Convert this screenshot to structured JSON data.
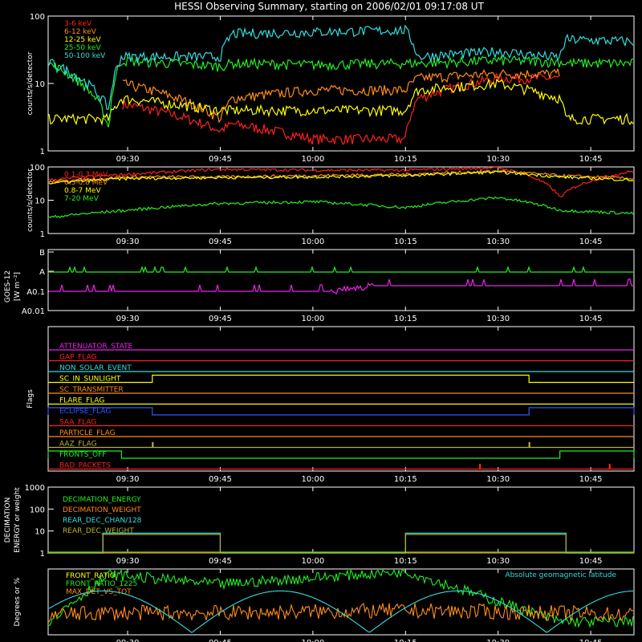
{
  "title": "HESSI Observing Summary, starting on 2006/02/01 09:17:08 UT",
  "time_ticks": [
    "09:30",
    "09:45",
    "10:00",
    "10:15",
    "10:30",
    "10:45"
  ],
  "colors": {
    "red": "#ff2020",
    "orange": "#ff8c1a",
    "yellow": "#ffff00",
    "green": "#22ee22",
    "cyan": "#33dddd",
    "magenta": "#ee22ee",
    "blue": "#3355ff",
    "olive": "#b8b030",
    "axis": "#ffffff"
  },
  "chart_data": [
    {
      "type": "line",
      "id": "panel-counts-low",
      "ylabel": "counts/s/detector",
      "y_scale": "log",
      "ylim": [
        1,
        100
      ],
      "ytick_labels": [
        "1",
        "10",
        "100"
      ],
      "legend_placement": "top-left",
      "x": [
        "09:17",
        "09:27",
        "09:29",
        "09:45",
        "09:47",
        "10:00",
        "10:15",
        "10:17",
        "10:30",
        "10:40",
        "10:41",
        "10:52"
      ],
      "series": [
        {
          "name": "3-6 keV",
          "color_key": "red",
          "values": [
            null,
            null,
            5,
            2,
            2.5,
            1.5,
            1.5,
            6,
            12,
            null,
            null,
            null
          ]
        },
        {
          "name": "6-12 keV",
          "color_key": "orange",
          "values": [
            null,
            null,
            10,
            3,
            6,
            8,
            8,
            12,
            14,
            null,
            null,
            null
          ]
        },
        {
          "name": "12-25 keV",
          "color_key": "yellow",
          "values": [
            3,
            3,
            6,
            4,
            4,
            4,
            4,
            8,
            10,
            6,
            3,
            3
          ]
        },
        {
          "name": "25-50 keV",
          "color_key": "green",
          "values": [
            20,
            2,
            22,
            18,
            20,
            19,
            20,
            20,
            22,
            21,
            20,
            20
          ]
        },
        {
          "name": "50-100 keV",
          "color_key": "cyan",
          "values": [
            21,
            4,
            25,
            25,
            55,
            58,
            62,
            25,
            30,
            24,
            45,
            42
          ]
        }
      ]
    },
    {
      "type": "line",
      "id": "panel-counts-high",
      "ylabel": "counts/s/detector",
      "y_scale": "log",
      "ylim": [
        1,
        100
      ],
      "ytick_labels": [
        "1",
        "10",
        "100"
      ],
      "legend_placement": "top-left",
      "x": [
        "09:17",
        "09:30",
        "09:45",
        "10:00",
        "10:15",
        "10:30",
        "10:40",
        "10:52"
      ],
      "series": [
        {
          "name": "0.1-0.3 MeV",
          "color_key": "red",
          "values": [
            40,
            60,
            85,
            80,
            80,
            95,
            12,
            75
          ]
        },
        {
          "name": "0.3-0.8 MeV",
          "color_key": "orange",
          "values": [
            35,
            50,
            50,
            55,
            60,
            75,
            55,
            45
          ]
        },
        {
          "name": "0.8-7 MeV",
          "color_key": "yellow",
          "values": [
            32,
            45,
            48,
            50,
            55,
            70,
            50,
            40
          ]
        },
        {
          "name": "7-20 MeV",
          "color_key": "green",
          "values": [
            3,
            5,
            8,
            9,
            6,
            12,
            5,
            4
          ]
        }
      ]
    },
    {
      "type": "line",
      "id": "panel-goes",
      "ylabel": "GOES-12",
      "ylabel_unit": "[W m⁻²]",
      "y_scale": "log",
      "ytick_labels": [
        "B",
        "A",
        "A0.1",
        "A0.01"
      ],
      "x": [
        "09:17",
        "10:00",
        "10:10",
        "10:52"
      ],
      "series": [
        {
          "name": "",
          "color_key": "green",
          "values": [
            "A",
            "A",
            "A",
            "A"
          ]
        },
        {
          "name": "",
          "color_key": "magenta",
          "values": [
            "A0.1",
            "A0.1",
            "above A0.1",
            "above A0.1"
          ]
        }
      ]
    },
    {
      "type": "line",
      "id": "panel-flags",
      "ylabel": "Flags",
      "flags": [
        {
          "name": "ATTENUATOR_STATE",
          "color_key": "magenta",
          "changes": []
        },
        {
          "name": "GAP_FLAG",
          "color_key": "red",
          "changes": []
        },
        {
          "name": "NON_SOLAR_EVENT",
          "color_key": "cyan",
          "changes": []
        },
        {
          "name": "SC_IN_SUNLIGHT",
          "color_key": "yellow",
          "high_intervals": [
            [
              "09:34",
              "10:35"
            ]
          ]
        },
        {
          "name": "SC_TRANSMITTER",
          "color_key": "orange",
          "changes": []
        },
        {
          "name": "FLARE_FLAG",
          "color_key": "yellow",
          "changes": []
        },
        {
          "name": "ECLIPSE_FLAG",
          "color_key": "blue",
          "high_intervals": [
            [
              "09:17",
              "09:34"
            ],
            [
              "10:35",
              "10:52"
            ]
          ]
        },
        {
          "name": "SAA_FLAG",
          "color_key": "red",
          "changes": []
        },
        {
          "name": "PARTICLE_FLAG",
          "color_key": "orange",
          "changes": []
        },
        {
          "name": "AAZ_FLAG",
          "color_key": "olive",
          "spikes": [
            "09:34",
            "10:35"
          ]
        },
        {
          "name": "FRONTS_OFF",
          "color_key": "green",
          "high_intervals": [
            [
              "09:17",
              "09:29"
            ],
            [
              "10:40",
              "10:52"
            ]
          ]
        },
        {
          "name": "BAD_PACKETS",
          "color_key": "red",
          "spikes": [
            "10:27",
            "10:48"
          ]
        }
      ]
    },
    {
      "type": "line",
      "id": "panel-decimation",
      "ylabel": "DECIMATION ENERGY or weight",
      "y_scale": "log",
      "ylim": [
        1,
        1000
      ],
      "ytick_labels": [
        "1",
        "10",
        "100",
        "1000"
      ],
      "legend_placement": "top-left",
      "x": [
        "09:17",
        "09:26",
        "09:45",
        "10:15",
        "10:41",
        "10:52"
      ],
      "series": [
        {
          "name": "DECIMATION_ENERGY",
          "color_key": "green",
          "values": [
            1,
            1,
            1,
            1,
            1,
            1
          ]
        },
        {
          "name": "DECIMATION_WEIGHT",
          "color_key": "orange",
          "values": [
            1,
            1,
            1,
            1,
            1,
            1
          ]
        },
        {
          "name": "REAR_DEC_CHAN/128",
          "color_key": "cyan",
          "values": [
            1,
            8,
            1,
            8,
            1,
            1
          ]
        },
        {
          "name": "REAR_DEC_WEIGHT",
          "color_key": "olive",
          "values": [
            1,
            7,
            1,
            7,
            1,
            1
          ]
        }
      ]
    },
    {
      "type": "line",
      "id": "panel-ratio",
      "ylabel": "Degrees or %",
      "legend_placement": "top-left",
      "annotation": "Absolute geomagnetic latitude",
      "x": [
        "09:17",
        "09:27",
        "09:45",
        "10:15",
        "10:40",
        "10:52"
      ],
      "series": [
        {
          "name": "FRONT_RATIO",
          "color_key": "yellow",
          "values": [
            null,
            null,
            null,
            null,
            null,
            null
          ]
        },
        {
          "name": "FRONT_RATIO_1225",
          "color_key": "green",
          "values": [
            12,
            55,
            46,
            58,
            12,
            12
          ]
        },
        {
          "name": "MAX_DET_VS_TOT",
          "color_key": "orange",
          "values": [
            18,
            20,
            20,
            22,
            20,
            18
          ]
        },
        {
          "name": "Absolute geomagnetic latitude",
          "color_key": "cyan",
          "values": [
            12,
            35,
            35,
            3,
            35,
            5
          ]
        }
      ]
    }
  ]
}
